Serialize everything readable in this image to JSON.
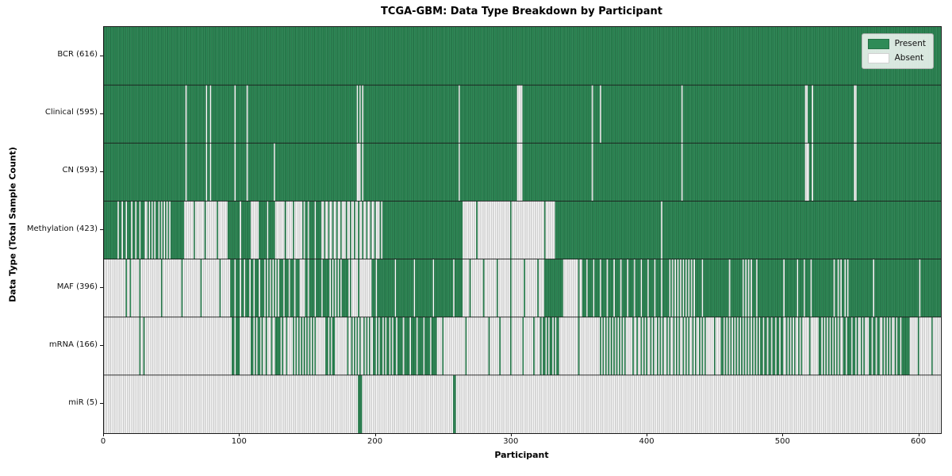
{
  "title": "TCGA-GBM: Data Type Breakdown by Participant",
  "x_axis": {
    "label": "Participant",
    "ticks": [
      0,
      100,
      200,
      300,
      400,
      500,
      600
    ],
    "range": [
      0,
      616
    ]
  },
  "y_axis": {
    "label": "Data Type (Total Sample Count)"
  },
  "legend": {
    "items": [
      {
        "label": "Present",
        "color": "#2e8b57"
      },
      {
        "label": "Absent",
        "color": "#ffffff"
      }
    ]
  },
  "colors": {
    "present_fill": "#2e8b57",
    "present_edge": "#1e5c39",
    "absent_fill": "#ffffff",
    "absent_edge": "#9a9a9a",
    "separator": "#1a1a1a",
    "plot_border": "#1a1a1a"
  },
  "chart_data": {
    "type": "heatmap",
    "title": "TCGA-GBM: Data Type Breakdown by Participant",
    "xlabel": "Participant",
    "ylabel": "Data Type (Total Sample Count)",
    "x_range": [
      0,
      616
    ],
    "x_ticks": [
      0,
      100,
      200,
      300,
      400,
      500,
      600
    ],
    "participants": 616,
    "legend_position": "upper right",
    "grid": false,
    "rows": [
      {
        "label": "BCR (616)",
        "data_type": "BCR",
        "count": 616,
        "base": 1,
        "runs": [],
        "absent": [],
        "present": []
      },
      {
        "label": "Clinical (595)",
        "data_type": "Clinical",
        "count": 595,
        "base": 1,
        "runs": [],
        "absent": [
          60,
          75,
          78,
          96,
          105,
          186,
          188,
          190,
          261,
          304,
          305,
          306,
          307,
          359,
          365,
          425,
          516,
          517,
          521,
          552,
          553
        ],
        "present": []
      },
      {
        "label": "CN (593)",
        "data_type": "CN",
        "count": 593,
        "base": 1,
        "runs": [],
        "absent": [
          60,
          75,
          78,
          96,
          105,
          125,
          186,
          187,
          188,
          190,
          261,
          304,
          305,
          306,
          307,
          359,
          425,
          516,
          517,
          518,
          521,
          552,
          553
        ],
        "present": []
      },
      {
        "label": "Methylation (423)",
        "data_type": "Methylation",
        "count": 423,
        "base": 1,
        "runs": [
          [
            9,
            31,
            0.7
          ],
          [
            31,
            50,
            0.55
          ],
          [
            58,
            90,
            0.12
          ],
          [
            90,
            108,
            0.9
          ],
          [
            108,
            114,
            0.05
          ],
          [
            114,
            127,
            0.85
          ],
          [
            127,
            148,
            0.15
          ],
          [
            148,
            160,
            0.8
          ],
          [
            160,
            205,
            0.32
          ],
          [
            264,
            332,
            0.04
          ]
        ],
        "absent": [
          410
        ],
        "present": []
      },
      {
        "label": "MAF (396)",
        "data_type": "MAF",
        "count": 396,
        "base": 1,
        "runs": [
          [
            0,
            17,
            0.06
          ],
          [
            17,
            29,
            0.15
          ],
          [
            29,
            93,
            0.07
          ],
          [
            93,
            117,
            0.72
          ],
          [
            117,
            128,
            0.5
          ],
          [
            128,
            144,
            0.75
          ],
          [
            144,
            148,
            0.1
          ],
          [
            148,
            165,
            0.8
          ],
          [
            165,
            175,
            0.5
          ],
          [
            175,
            182,
            0.95
          ],
          [
            182,
            197,
            0.08
          ],
          [
            197,
            264,
            0.93
          ],
          [
            264,
            324,
            0.1
          ],
          [
            324,
            338,
            0.95
          ],
          [
            338,
            352,
            0.08
          ],
          [
            352,
            388,
            0.8
          ],
          [
            388,
            415,
            0.8
          ],
          [
            415,
            435,
            0.5
          ],
          [
            435,
            470,
            0.95
          ],
          [
            470,
            477,
            0.5
          ],
          [
            477,
            510,
            0.95
          ],
          [
            510,
            522,
            0.8
          ],
          [
            522,
            536,
            0.95
          ],
          [
            536,
            548,
            0.6
          ],
          [
            548,
            616,
            0.97
          ]
        ],
        "absent": [],
        "present": []
      },
      {
        "label": "mRNA (166)",
        "data_type": "mRNA",
        "count": 166,
        "base": 0,
        "runs": [
          [
            25,
            32,
            0.3
          ],
          [
            93,
            101,
            0.7
          ],
          [
            101,
            109,
            0.12
          ],
          [
            109,
            117,
            0.6
          ],
          [
            117,
            126,
            0.3
          ],
          [
            126,
            132,
            0.9
          ],
          [
            132,
            140,
            0.2
          ],
          [
            140,
            156,
            0.5
          ],
          [
            162,
            169,
            0.6
          ],
          [
            169,
            181,
            0.1
          ],
          [
            181,
            197,
            0.45
          ],
          [
            197,
            215,
            0.6
          ],
          [
            215,
            245,
            0.8
          ],
          [
            245,
            280,
            0.06
          ],
          [
            280,
            320,
            0.12
          ],
          [
            320,
            335,
            0.6
          ],
          [
            335,
            365,
            0.06
          ],
          [
            365,
            385,
            0.5
          ],
          [
            385,
            391,
            0.2
          ],
          [
            391,
            445,
            0.42
          ],
          [
            445,
            455,
            0.2
          ],
          [
            455,
            484,
            0.5
          ],
          [
            484,
            500,
            0.65
          ],
          [
            500,
            515,
            0.45
          ],
          [
            515,
            527,
            0.15
          ],
          [
            527,
            543,
            0.5
          ],
          [
            543,
            553,
            0.7
          ],
          [
            553,
            562,
            0.4
          ],
          [
            562,
            572,
            0.65
          ],
          [
            572,
            585,
            0.45
          ],
          [
            585,
            593,
            0.85
          ],
          [
            593,
            616,
            0.1
          ]
        ],
        "absent": [],
        "present": []
      },
      {
        "label": "miR (5)",
        "data_type": "miR",
        "count": 5,
        "base": 0,
        "runs": [],
        "absent": [],
        "present": [
          187,
          188,
          189,
          257,
          258
        ]
      }
    ]
  }
}
